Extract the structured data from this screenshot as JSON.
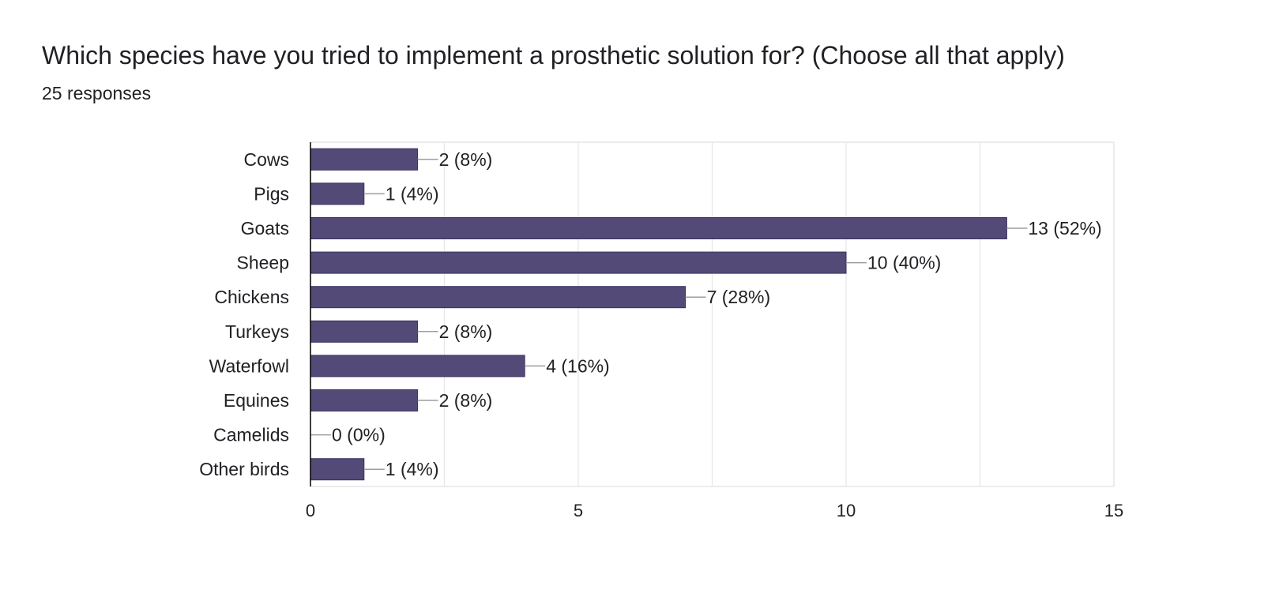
{
  "header": {
    "title": "Which species have you tried to implement a prosthetic solution for? (Choose all that apply)",
    "responses": "25 responses"
  },
  "colors": {
    "bar": "#544a77",
    "bar_stroke": "#3a3260",
    "grid": "#e6e6e6",
    "axis": "#000000",
    "leader": "#9e9e9e"
  },
  "chart_data": {
    "type": "bar",
    "orientation": "horizontal",
    "categories": [
      "Cows",
      "Pigs",
      "Goats",
      "Sheep",
      "Chickens",
      "Turkeys",
      "Waterfowl",
      "Equines",
      "Camelids",
      "Other birds"
    ],
    "values": [
      2,
      1,
      13,
      10,
      7,
      2,
      4,
      2,
      0,
      1
    ],
    "data_labels": [
      "2 (8%)",
      "1 (4%)",
      "13 (52%)",
      "10 (40%)",
      "7 (28%)",
      "2 (8%)",
      "4 (16%)",
      "2 (8%)",
      "0 (0%)",
      "1 (4%)"
    ],
    "xlim": [
      0,
      15
    ],
    "x_ticks": [
      "0",
      "5",
      "10",
      "15"
    ],
    "x_tick_values": [
      0,
      5,
      10,
      15
    ],
    "grid": true,
    "legend": "none",
    "title": "",
    "xlabel": "",
    "ylabel": ""
  }
}
